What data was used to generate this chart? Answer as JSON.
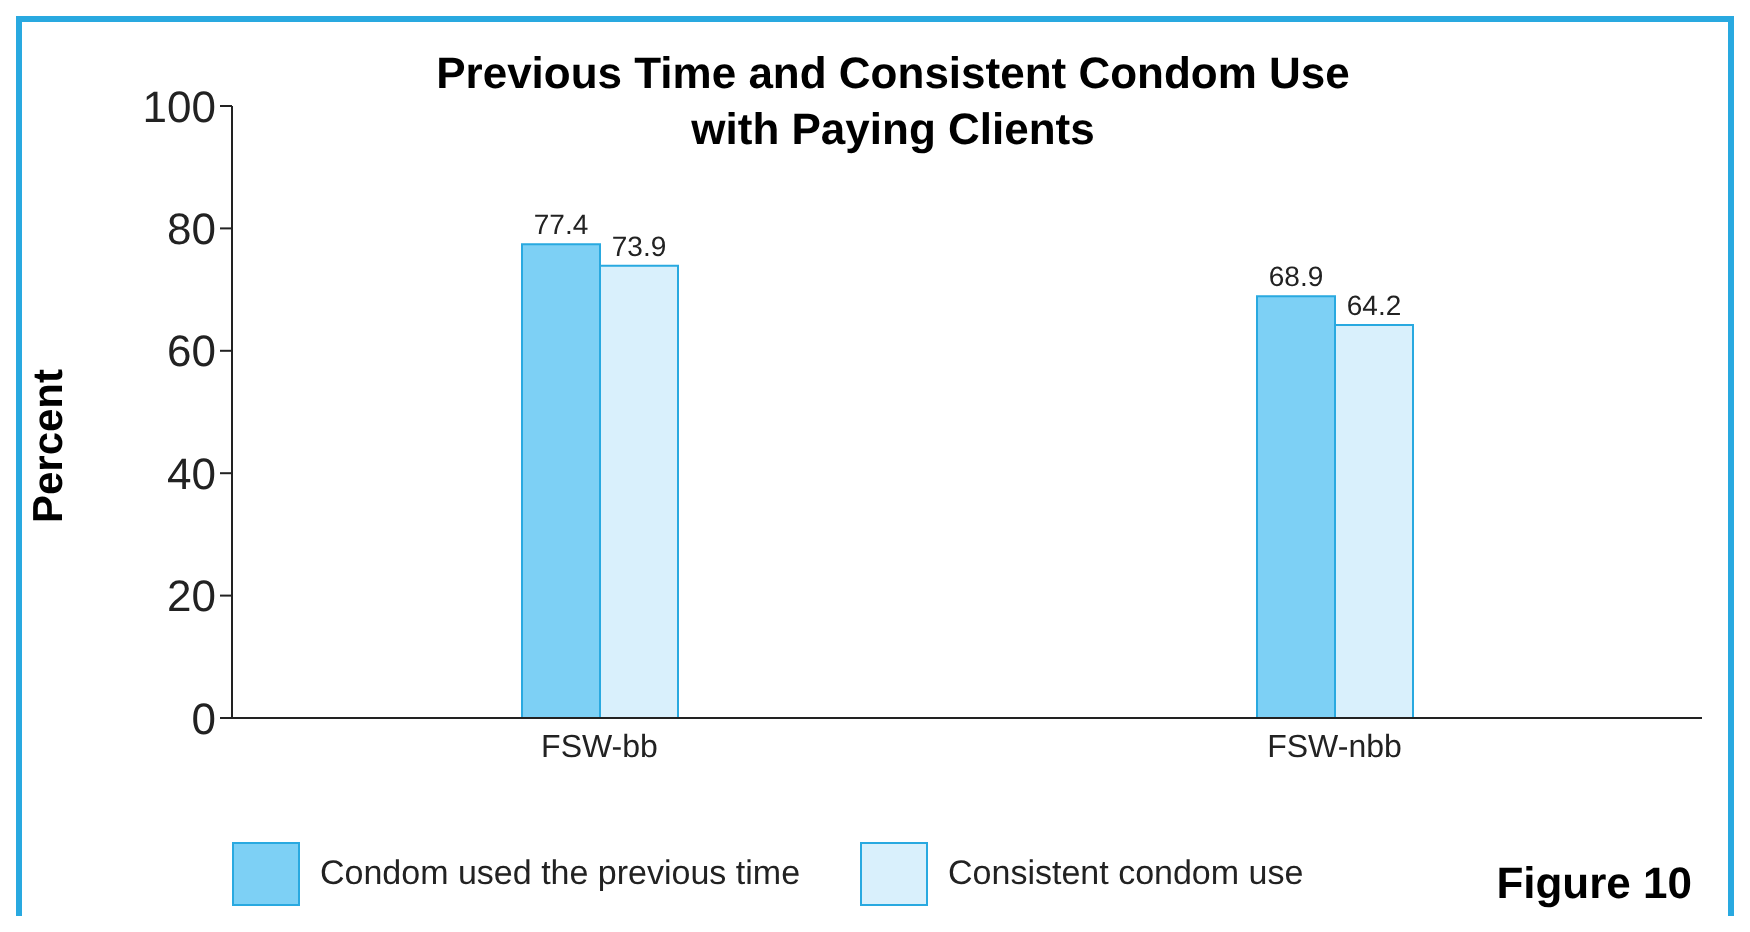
{
  "chart_data": {
    "type": "bar",
    "title": "Previous Time and Consistent Condom Use\nwith Paying Clients",
    "ylabel": "Percent",
    "categories": [
      "FSW-bb",
      "FSW-nbb"
    ],
    "series": [
      {
        "name": "Condom used the previous time",
        "color": "#7dd0f5",
        "values": [
          77.4,
          68.9
        ]
      },
      {
        "name": "Consistent condom use",
        "color": "#d9f0fc",
        "values": [
          73.9,
          64.2
        ]
      }
    ],
    "ylim": [
      0,
      100
    ],
    "yticks": [
      0,
      20,
      40,
      60,
      80,
      100
    ],
    "grid": false,
    "legend": "bottom",
    "data_labels": true,
    "annotations": [
      "Figure 10"
    ]
  }
}
